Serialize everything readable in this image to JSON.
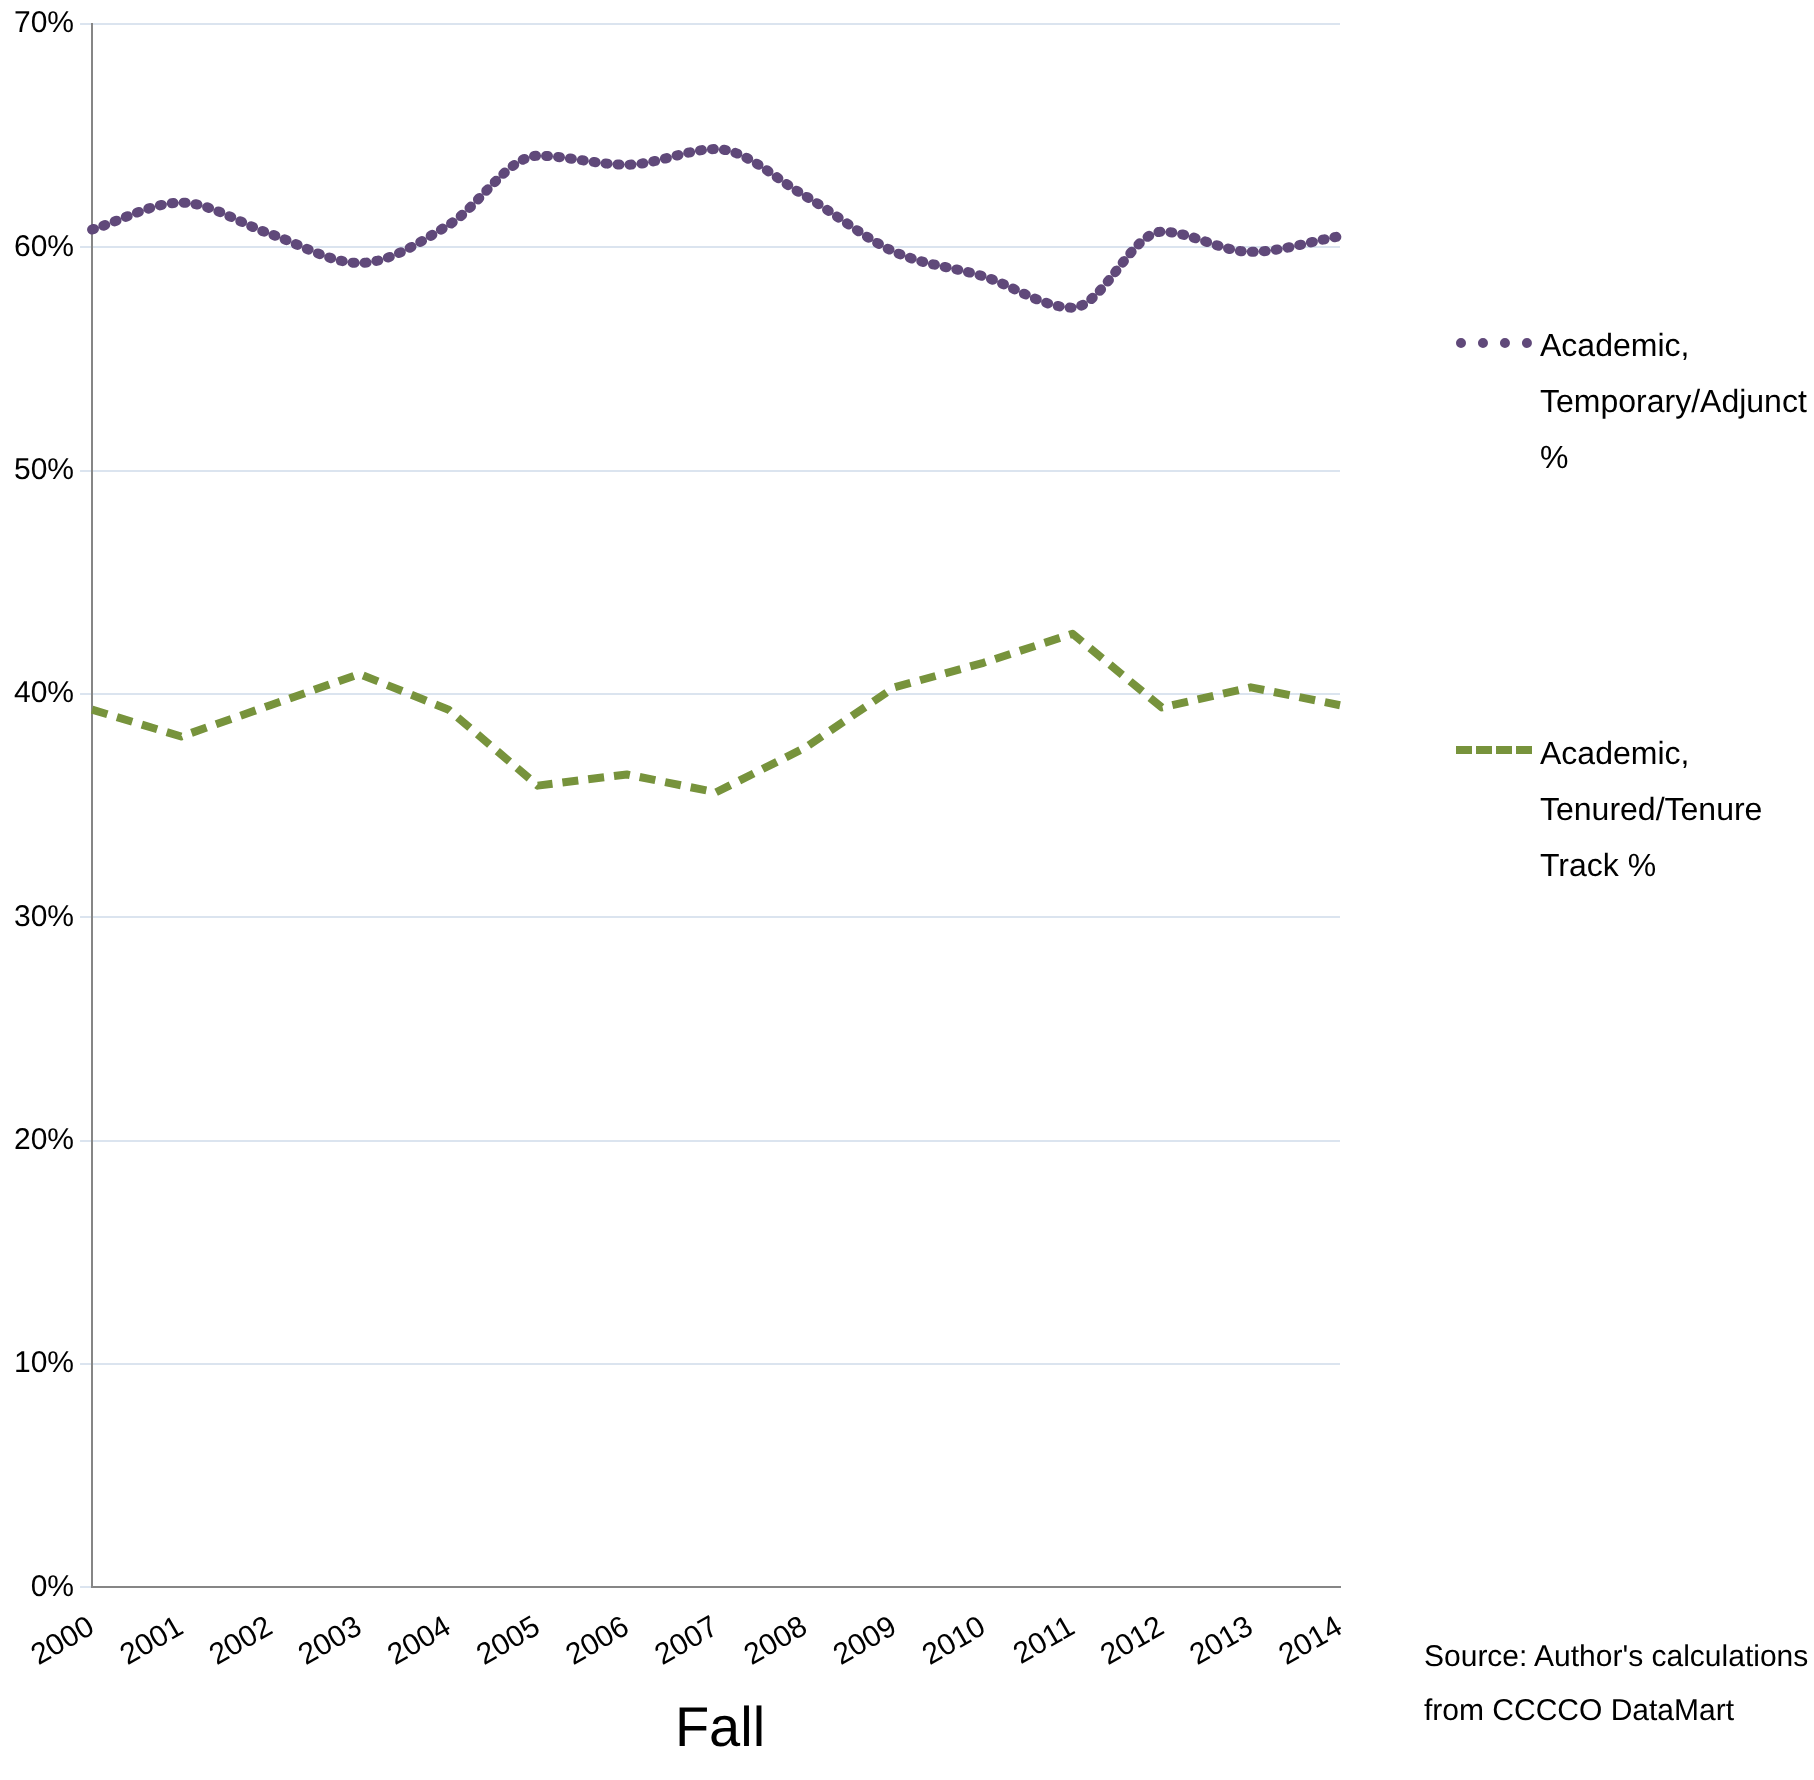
{
  "chart_data": {
    "type": "line",
    "xlabel": "Fall",
    "categories": [
      "2000",
      "2001",
      "2002",
      "2003",
      "2004",
      "2005",
      "2006",
      "2007",
      "2008",
      "2009",
      "2010",
      "2011",
      "2012",
      "2013",
      "2014"
    ],
    "series": [
      {
        "name": "Academic, Temporary/Adjunct %",
        "color": "#60497a",
        "line_style": "dotted",
        "values": [
          60.8,
          62.0,
          60.6,
          59.3,
          61.0,
          64.1,
          63.7,
          64.4,
          62.3,
          59.8,
          58.7,
          57.3,
          60.7,
          59.8,
          60.5
        ]
      },
      {
        "name": "Academic, Tenured/Tenure Track %",
        "color": "#77933c",
        "line_style": "dashed",
        "values": [
          39.3,
          38.1,
          39.5,
          40.9,
          39.3,
          35.9,
          36.4,
          35.6,
          37.6,
          40.3,
          41.4,
          42.7,
          39.4,
          40.3,
          39.5
        ]
      }
    ],
    "ylim": [
      0,
      70
    ],
    "yticks": [
      {
        "value": 0,
        "label": "0%"
      },
      {
        "value": 10,
        "label": "10%"
      },
      {
        "value": 20,
        "label": "20%"
      },
      {
        "value": 30,
        "label": "30%"
      },
      {
        "value": 40,
        "label": "40%"
      },
      {
        "value": 50,
        "label": "50%"
      },
      {
        "value": 60,
        "label": "60%"
      },
      {
        "value": 70,
        "label": "70%"
      }
    ],
    "grid": "y",
    "legend": "right",
    "marker": "none",
    "annotations": [
      "Source: Author's calculations from CCCCO DataMart"
    ]
  }
}
